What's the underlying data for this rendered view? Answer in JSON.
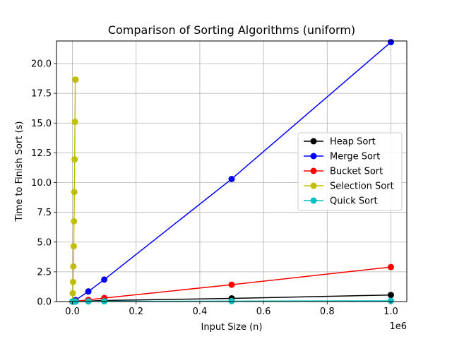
{
  "chart_data": {
    "type": "line",
    "title": "Comparison of Sorting Algorithms (uniform)",
    "xlabel": "Input Size (n)",
    "ylabel": "Time to Finish Sort (s)",
    "x_offset_label": "1e6",
    "xlim": [
      -50000,
      1050000
    ],
    "ylim": [
      0,
      21.9
    ],
    "xticks": [
      0,
      200000,
      400000,
      600000,
      800000,
      1000000
    ],
    "xtick_labels": [
      "0.0",
      "0.2",
      "0.4",
      "0.6",
      "0.8",
      "1.0"
    ],
    "yticks": [
      0,
      2.5,
      5,
      7.5,
      10,
      12.5,
      15,
      17.5,
      20
    ],
    "ytick_labels": [
      "0.0",
      "2.5",
      "5.0",
      "7.5",
      "10.0",
      "12.5",
      "15.0",
      "17.5",
      "20.0"
    ],
    "grid": true,
    "legend_position": "center-right",
    "series": [
      {
        "name": "Heap Sort",
        "color": "#000000",
        "x": [
          100,
          500,
          1000,
          5000,
          10000,
          50000,
          100000,
          500000,
          1000000
        ],
        "y": [
          0.0,
          0.0,
          0.0,
          0.005,
          0.01,
          0.04,
          0.09,
          0.27,
          0.55
        ]
      },
      {
        "name": "Merge Sort",
        "color": "#0000ff",
        "x": [
          100,
          500,
          1000,
          5000,
          10000,
          50000,
          100000,
          500000,
          1000000
        ],
        "y": [
          0.0,
          0.0,
          0.01,
          0.05,
          0.12,
          0.85,
          1.85,
          10.3,
          21.8
        ]
      },
      {
        "name": "Bucket Sort",
        "color": "#ff0000",
        "x": [
          100,
          500,
          1000,
          5000,
          10000,
          50000,
          100000,
          500000,
          1000000
        ],
        "y": [
          0.0,
          0.0,
          0.0,
          0.01,
          0.03,
          0.14,
          0.3,
          1.42,
          2.9
        ]
      },
      {
        "name": "Selection Sort",
        "color": "#bfbf00",
        "x": [
          0,
          1000,
          2000,
          3000,
          4000,
          5000,
          6000,
          7000,
          8000,
          9000,
          10000
        ],
        "y": [
          0.0,
          0.7,
          1.65,
          2.95,
          4.65,
          6.75,
          9.2,
          11.95,
          15.1,
          18.65,
          18.65
        ]
      },
      {
        "name": "Quick Sort",
        "color": "#00bfbf",
        "x": [
          100,
          500,
          1000,
          5000,
          10000,
          50000,
          100000,
          500000,
          1000000
        ],
        "y": [
          0.0,
          0.0,
          0.0,
          0.0,
          0.0,
          0.01,
          0.02,
          0.04,
          0.06
        ]
      }
    ]
  }
}
